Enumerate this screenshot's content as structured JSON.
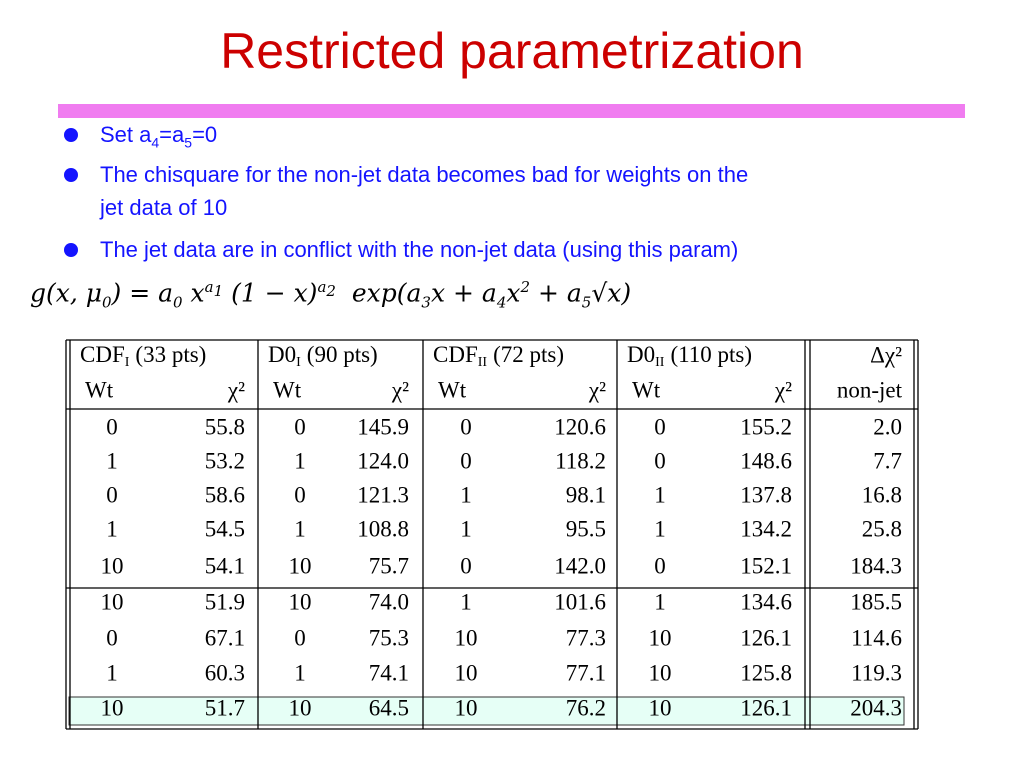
{
  "title": "Restricted parametrization",
  "bullets": [
    {
      "parts": [
        "Set a",
        "4",
        "=a",
        "5",
        "=0"
      ]
    },
    {
      "parts": [
        "The chisquare for the non-jet data becomes bad for weights on the",
        "jet data of 10"
      ]
    },
    {
      "parts": [
        "The jet data are in conflict with the non-jet data (using this param)"
      ]
    }
  ],
  "formula": {
    "parts": [
      "g(x, μ",
      "0",
      ") = a",
      "0",
      " x",
      "a",
      "1",
      " (1 − x)",
      "a",
      "2",
      "  exp(a",
      "3",
      "x + a",
      "4",
      "x",
      "2",
      " + a",
      "5",
      "√x)"
    ]
  },
  "table": {
    "groups": [
      {
        "name": "CDF",
        "sub": "I",
        "pts": "(33 pts)"
      },
      {
        "name": "D0",
        "sub": "I",
        "pts": "(90 pts)"
      },
      {
        "name": "CDF",
        "sub": "II",
        "pts": "(72 pts)"
      },
      {
        "name": "D0",
        "sub": "II",
        "pts": "(110 pts)"
      },
      {
        "name": "Δχ²"
      }
    ],
    "subheaders": [
      "Wt",
      "χ²",
      "Wt",
      "χ²",
      "Wt",
      "χ²",
      "Wt",
      "χ²",
      "non-jet"
    ],
    "rows": [
      [
        "0",
        "55.8",
        "0",
        "145.9",
        "0",
        "120.6",
        "0",
        "155.2",
        "2.0"
      ],
      [
        "1",
        "53.2",
        "1",
        "124.0",
        "0",
        "118.2",
        "0",
        "148.6",
        "7.7"
      ],
      [
        "0",
        "58.6",
        "0",
        "121.3",
        "1",
        "98.1",
        "1",
        "137.8",
        "16.8"
      ],
      [
        "1",
        "54.5",
        "1",
        "108.8",
        "1",
        "95.5",
        "1",
        "134.2",
        "25.8"
      ],
      [
        "10",
        "54.1",
        "10",
        "75.7",
        "0",
        "142.0",
        "0",
        "152.1",
        "184.3"
      ],
      [
        "10",
        "51.9",
        "10",
        "74.0",
        "1",
        "101.6",
        "1",
        "134.6",
        "185.5"
      ],
      [
        "0",
        "67.1",
        "0",
        "75.3",
        "10",
        "77.3",
        "10",
        "126.1",
        "114.6"
      ],
      [
        "1",
        "60.3",
        "1",
        "74.1",
        "10",
        "77.1",
        "10",
        "125.8",
        "119.3"
      ],
      [
        "10",
        "51.7",
        "10",
        "64.5",
        "10",
        "76.2",
        "10",
        "126.1",
        "204.3"
      ]
    ]
  }
}
